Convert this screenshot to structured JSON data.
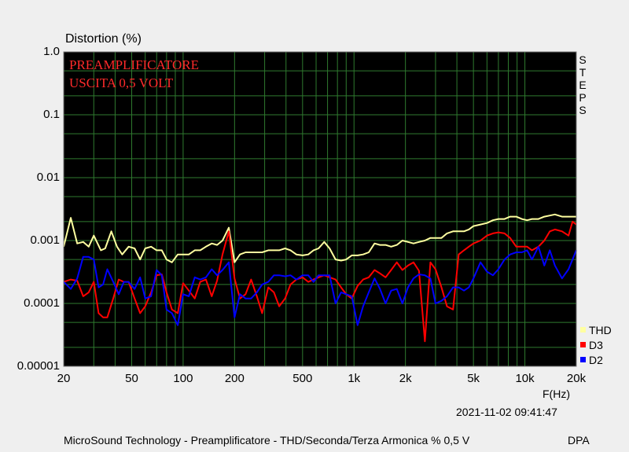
{
  "chart_data": {
    "type": "line",
    "title": "Distortion (%)",
    "xlabel": "F(Hz)",
    "x_scale": "log",
    "y_scale": "log",
    "xlim": [
      20,
      20000
    ],
    "ylim": [
      1e-05,
      1.0
    ],
    "y_ticks": [
      {
        "v": 1.0,
        "label": "1.0"
      },
      {
        "v": 0.1,
        "label": "0.1"
      },
      {
        "v": 0.01,
        "label": "0.01"
      },
      {
        "v": 0.001,
        "label": "0.001"
      },
      {
        "v": 0.0001,
        "label": "0.0001"
      },
      {
        "v": 1e-05,
        "label": "0.00001"
      }
    ],
    "x_ticks": [
      {
        "v": 20,
        "label": "20"
      },
      {
        "v": 50,
        "label": "50"
      },
      {
        "v": 100,
        "label": "100"
      },
      {
        "v": 200,
        "label": "200"
      },
      {
        "v": 500,
        "label": "500"
      },
      {
        "v": 1000,
        "label": "1k"
      },
      {
        "v": 2000,
        "label": "2k"
      },
      {
        "v": 5000,
        "label": "5k"
      },
      {
        "v": 10000,
        "label": "10k"
      },
      {
        "v": 20000,
        "label": "20k"
      }
    ],
    "grid": true,
    "background": "#000000",
    "grid_color": "#2f7a2f",
    "annotations": [
      "PREAMPLIFICATORE",
      "USCITA 0,5 VOLT"
    ],
    "annotation_color": "#ff2a2a",
    "side_label": [
      "S",
      "T",
      "E",
      "P",
      "S"
    ],
    "legend_position": "right-bottom",
    "timestamp": "2021-11-02 09:41:47",
    "series": [
      {
        "name": "THD",
        "color": "#ffffa0",
        "points": [
          [
            20,
            0.0008
          ],
          [
            22,
            0.0023
          ],
          [
            24,
            0.0009
          ],
          [
            26,
            0.00095
          ],
          [
            28,
            0.0008
          ],
          [
            30,
            0.0012
          ],
          [
            33,
            0.0007
          ],
          [
            35,
            0.00075
          ],
          [
            38,
            0.0014
          ],
          [
            41,
            0.0008
          ],
          [
            44,
            0.0006
          ],
          [
            48,
            0.0008
          ],
          [
            52,
            0.00075
          ],
          [
            56,
            0.0005
          ],
          [
            60,
            0.00075
          ],
          [
            65,
            0.0008
          ],
          [
            70,
            0.0007
          ],
          [
            75,
            0.0007
          ],
          [
            80,
            0.0005
          ],
          [
            86,
            0.00045
          ],
          [
            93,
            0.0006
          ],
          [
            100,
            0.0006
          ],
          [
            108,
            0.0006
          ],
          [
            117,
            0.0007
          ],
          [
            126,
            0.0007
          ],
          [
            136,
            0.0008
          ],
          [
            147,
            0.0009
          ],
          [
            158,
            0.00085
          ],
          [
            170,
            0.001
          ],
          [
            185,
            0.0016
          ],
          [
            200,
            0.00045
          ],
          [
            215,
            0.0006
          ],
          [
            232,
            0.00065
          ],
          [
            250,
            0.00065
          ],
          [
            270,
            0.00065
          ],
          [
            290,
            0.00065
          ],
          [
            315,
            0.0007
          ],
          [
            340,
            0.0007
          ],
          [
            365,
            0.0007
          ],
          [
            395,
            0.00075
          ],
          [
            425,
            0.0007
          ],
          [
            460,
            0.0006
          ],
          [
            500,
            0.00058
          ],
          [
            540,
            0.0006
          ],
          [
            580,
            0.0007
          ],
          [
            620,
            0.00075
          ],
          [
            670,
            0.00095
          ],
          [
            720,
            0.00075
          ],
          [
            780,
            0.0005
          ],
          [
            840,
            0.00048
          ],
          [
            900,
            0.0005
          ],
          [
            970,
            0.00058
          ],
          [
            1050,
            0.00058
          ],
          [
            1130,
            0.0006
          ],
          [
            1220,
            0.00065
          ],
          [
            1320,
            0.0009
          ],
          [
            1420,
            0.00085
          ],
          [
            1530,
            0.00085
          ],
          [
            1650,
            0.0008
          ],
          [
            1780,
            0.00085
          ],
          [
            1920,
            0.001
          ],
          [
            2070,
            0.00095
          ],
          [
            2230,
            0.0009
          ],
          [
            2400,
            0.00095
          ],
          [
            2600,
            0.001
          ],
          [
            2800,
            0.0011
          ],
          [
            3000,
            0.0011
          ],
          [
            3250,
            0.0011
          ],
          [
            3500,
            0.0013
          ],
          [
            3800,
            0.0014
          ],
          [
            4100,
            0.0014
          ],
          [
            4400,
            0.0014
          ],
          [
            4700,
            0.0015
          ],
          [
            5000,
            0.0017
          ],
          [
            5500,
            0.0018
          ],
          [
            6000,
            0.0019
          ],
          [
            6500,
            0.0021
          ],
          [
            7000,
            0.0022
          ],
          [
            7600,
            0.0022
          ],
          [
            8200,
            0.0024
          ],
          [
            8900,
            0.0024
          ],
          [
            9600,
            0.0022
          ],
          [
            10300,
            0.0021
          ],
          [
            11000,
            0.0022
          ],
          [
            12000,
            0.0022
          ],
          [
            13000,
            0.0024
          ],
          [
            14000,
            0.0025
          ],
          [
            15000,
            0.0026
          ],
          [
            16500,
            0.0024
          ],
          [
            18000,
            0.0024
          ],
          [
            20000,
            0.0024
          ]
        ]
      },
      {
        "name": "D3",
        "color": "#ff0000",
        "points": [
          [
            20,
            0.00022
          ],
          [
            22,
            0.00024
          ],
          [
            24,
            0.00023
          ],
          [
            26,
            0.00013
          ],
          [
            28,
            0.00015
          ],
          [
            30,
            0.00022
          ],
          [
            32,
            7e-05
          ],
          [
            34,
            6e-05
          ],
          [
            36,
            6e-05
          ],
          [
            39,
            0.00012
          ],
          [
            42,
            0.00024
          ],
          [
            45,
            0.00022
          ],
          [
            48,
            0.00022
          ],
          [
            52,
            0.00012
          ],
          [
            56,
            7e-05
          ],
          [
            60,
            9e-05
          ],
          [
            65,
            0.00015
          ],
          [
            70,
            0.00028
          ],
          [
            75,
            0.00029
          ],
          [
            80,
            0.00015
          ],
          [
            86,
            8e-05
          ],
          [
            93,
            7e-05
          ],
          [
            100,
            0.00021
          ],
          [
            108,
            0.00016
          ],
          [
            117,
            0.00012
          ],
          [
            126,
            0.00022
          ],
          [
            136,
            0.00024
          ],
          [
            147,
            0.00013
          ],
          [
            158,
            0.00023
          ],
          [
            170,
            0.0006
          ],
          [
            185,
            0.0014
          ],
          [
            200,
            0.00025
          ],
          [
            215,
            0.00012
          ],
          [
            232,
            0.00014
          ],
          [
            250,
            0.00024
          ],
          [
            270,
            0.00013
          ],
          [
            290,
            7e-05
          ],
          [
            315,
            0.00018
          ],
          [
            340,
            0.00015
          ],
          [
            365,
            9e-05
          ],
          [
            395,
            0.00012
          ],
          [
            425,
            0.0002
          ],
          [
            460,
            0.00024
          ],
          [
            500,
            0.00026
          ],
          [
            540,
            0.00022
          ],
          [
            580,
            0.00024
          ],
          [
            620,
            0.00026
          ],
          [
            670,
            0.00028
          ],
          [
            720,
            0.00026
          ],
          [
            780,
            0.00024
          ],
          [
            840,
            0.00018
          ],
          [
            900,
            0.00014
          ],
          [
            970,
            0.00012
          ],
          [
            1050,
            0.00019
          ],
          [
            1130,
            0.00024
          ],
          [
            1220,
            0.00026
          ],
          [
            1320,
            0.00034
          ],
          [
            1420,
            0.0003
          ],
          [
            1530,
            0.00026
          ],
          [
            1650,
            0.00034
          ],
          [
            1780,
            0.00045
          ],
          [
            1920,
            0.00034
          ],
          [
            2070,
            0.0004
          ],
          [
            2230,
            0.00045
          ],
          [
            2400,
            0.00033
          ],
          [
            2600,
            2.5e-05
          ],
          [
            2800,
            0.00045
          ],
          [
            3000,
            0.00035
          ],
          [
            3250,
            0.00018
          ],
          [
            3500,
            9e-05
          ],
          [
            3800,
            8e-05
          ],
          [
            4100,
            0.0006
          ],
          [
            4400,
            0.0007
          ],
          [
            4700,
            0.0008
          ],
          [
            5000,
            0.0009
          ],
          [
            5500,
            0.001
          ],
          [
            6000,
            0.0012
          ],
          [
            6500,
            0.0013
          ],
          [
            7000,
            0.00135
          ],
          [
            7600,
            0.0013
          ],
          [
            8200,
            0.0011
          ],
          [
            8900,
            0.0008
          ],
          [
            9600,
            0.0008
          ],
          [
            10300,
            0.0008
          ],
          [
            11000,
            0.0007
          ],
          [
            12000,
            0.0008
          ],
          [
            13000,
            0.001
          ],
          [
            14000,
            0.0014
          ],
          [
            15000,
            0.0015
          ],
          [
            16500,
            0.0014
          ],
          [
            18000,
            0.0012
          ],
          [
            19000,
            0.002
          ],
          [
            20000,
            0.0018
          ]
        ]
      },
      {
        "name": "D2",
        "color": "#0000ff",
        "points": [
          [
            20,
            0.00022
          ],
          [
            22,
            0.00017
          ],
          [
            24,
            0.00025
          ],
          [
            26,
            0.00055
          ],
          [
            28,
            0.00055
          ],
          [
            30,
            0.0005
          ],
          [
            32,
            0.00018
          ],
          [
            34,
            0.0002
          ],
          [
            36,
            0.00035
          ],
          [
            39,
            0.00022
          ],
          [
            42,
            0.00014
          ],
          [
            45,
            0.00022
          ],
          [
            48,
            0.00022
          ],
          [
            52,
            0.00017
          ],
          [
            56,
            0.00026
          ],
          [
            60,
            0.00012
          ],
          [
            65,
            0.00013
          ],
          [
            70,
            0.00034
          ],
          [
            75,
            0.00028
          ],
          [
            80,
            8e-05
          ],
          [
            86,
            7e-05
          ],
          [
            93,
            4.5e-05
          ],
          [
            100,
            0.00014
          ],
          [
            108,
            0.00013
          ],
          [
            117,
            0.00026
          ],
          [
            126,
            0.00024
          ],
          [
            136,
            0.00026
          ],
          [
            147,
            0.00035
          ],
          [
            158,
            0.00028
          ],
          [
            170,
            0.00034
          ],
          [
            185,
            0.00045
          ],
          [
            200,
            6e-05
          ],
          [
            215,
            0.00014
          ],
          [
            232,
            0.00012
          ],
          [
            250,
            0.00012
          ],
          [
            270,
            0.00015
          ],
          [
            290,
            0.0002
          ],
          [
            315,
            0.00022
          ],
          [
            340,
            0.00028
          ],
          [
            365,
            0.00028
          ],
          [
            395,
            0.00027
          ],
          [
            425,
            0.00028
          ],
          [
            460,
            0.00024
          ],
          [
            500,
            0.00028
          ],
          [
            540,
            0.00028
          ],
          [
            580,
            0.00022
          ],
          [
            620,
            0.00028
          ],
          [
            670,
            0.00028
          ],
          [
            720,
            0.00028
          ],
          [
            780,
            0.0001
          ],
          [
            840,
            0.00015
          ],
          [
            900,
            0.00014
          ],
          [
            970,
            0.00013
          ],
          [
            1050,
            4.5e-05
          ],
          [
            1130,
            9e-05
          ],
          [
            1220,
            0.00015
          ],
          [
            1320,
            0.00025
          ],
          [
            1420,
            0.00017
          ],
          [
            1530,
            0.0001
          ],
          [
            1650,
            0.00016
          ],
          [
            1780,
            0.00017
          ],
          [
            1920,
            0.0001
          ],
          [
            2070,
            0.00018
          ],
          [
            2230,
            0.00025
          ],
          [
            2400,
            0.00029
          ],
          [
            2600,
            0.00028
          ],
          [
            2800,
            0.00025
          ],
          [
            3000,
            0.0001
          ],
          [
            3250,
            0.00011
          ],
          [
            3500,
            0.00013
          ],
          [
            3800,
            0.00018
          ],
          [
            4100,
            0.00018
          ],
          [
            4400,
            0.00016
          ],
          [
            4700,
            0.00018
          ],
          [
            5000,
            0.00025
          ],
          [
            5500,
            0.00045
          ],
          [
            6000,
            0.00032
          ],
          [
            6500,
            0.00028
          ],
          [
            7000,
            0.00035
          ],
          [
            7600,
            0.0005
          ],
          [
            8200,
            0.0006
          ],
          [
            8900,
            0.00065
          ],
          [
            9600,
            0.00065
          ],
          [
            10300,
            0.0007
          ],
          [
            11000,
            0.0005
          ],
          [
            12000,
            0.0008
          ],
          [
            13000,
            0.0004
          ],
          [
            14000,
            0.0007
          ],
          [
            15000,
            0.0004
          ],
          [
            16500,
            0.00025
          ],
          [
            18000,
            0.00035
          ],
          [
            20000,
            0.0007
          ]
        ]
      }
    ]
  },
  "footer": {
    "caption": "MicroSound Technology - Preamplificatore - THD/Seconda/Terza Armonica % 0,5 V",
    "brand": "DPA"
  }
}
